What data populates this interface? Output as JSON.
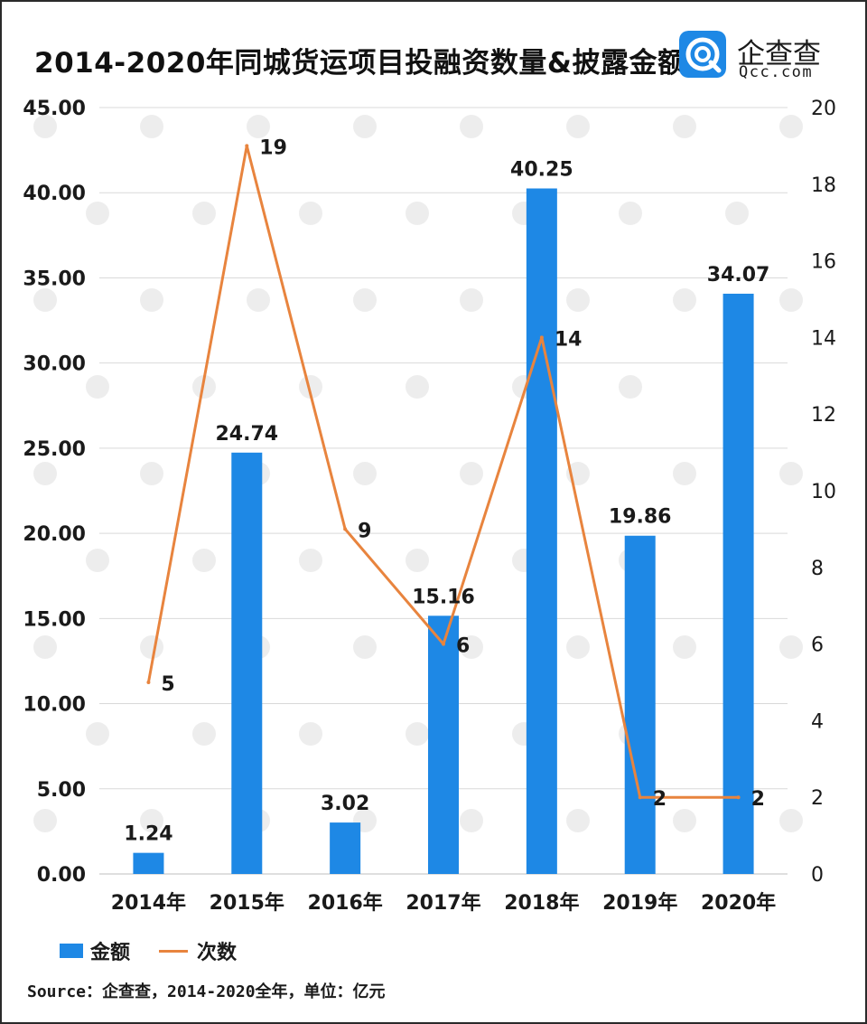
{
  "title": "2014-2020年同城货运项目投融资数量&披露金额",
  "logo": {
    "name_cn": "企查查",
    "domain": "Qcc.com",
    "icon": "qcc-logo-icon"
  },
  "legend": {
    "bar_label": "金额",
    "line_label": "次数"
  },
  "source": "Source：企查查，2014-2020全年，单位：亿元",
  "colors": {
    "bar": "#1e88e5",
    "line": "#e8843e",
    "grid": "#d9d9d9",
    "text": "#1a1a1a"
  },
  "chart_data": {
    "type": "bar+line",
    "categories": [
      "2014年",
      "2015年",
      "2016年",
      "2017年",
      "2018年",
      "2019年",
      "2020年"
    ],
    "series": [
      {
        "name": "金额",
        "type": "bar",
        "axis": "left",
        "values": [
          1.24,
          24.74,
          3.02,
          15.16,
          40.25,
          19.86,
          34.07
        ],
        "labels": [
          "1.24",
          "24.74",
          "3.02",
          "15.16",
          "40.25",
          "19.86",
          "34.07"
        ]
      },
      {
        "name": "次数",
        "type": "line",
        "axis": "right",
        "values": [
          5,
          19,
          9,
          6,
          14,
          2,
          2
        ],
        "labels": [
          "5",
          "19",
          "9",
          "6",
          "14",
          "2",
          "2"
        ]
      }
    ],
    "left_axis": {
      "min": 0,
      "max": 45,
      "step": 5,
      "ticks": [
        "0.00",
        "5.00",
        "10.00",
        "15.00",
        "20.00",
        "25.00",
        "30.00",
        "35.00",
        "40.00",
        "45.00"
      ]
    },
    "right_axis": {
      "min": 0,
      "max": 20,
      "step": 2,
      "ticks": [
        "0",
        "2",
        "4",
        "6",
        "8",
        "10",
        "12",
        "14",
        "16",
        "18",
        "20"
      ]
    },
    "grid": true,
    "legend_position": "bottom-left"
  }
}
